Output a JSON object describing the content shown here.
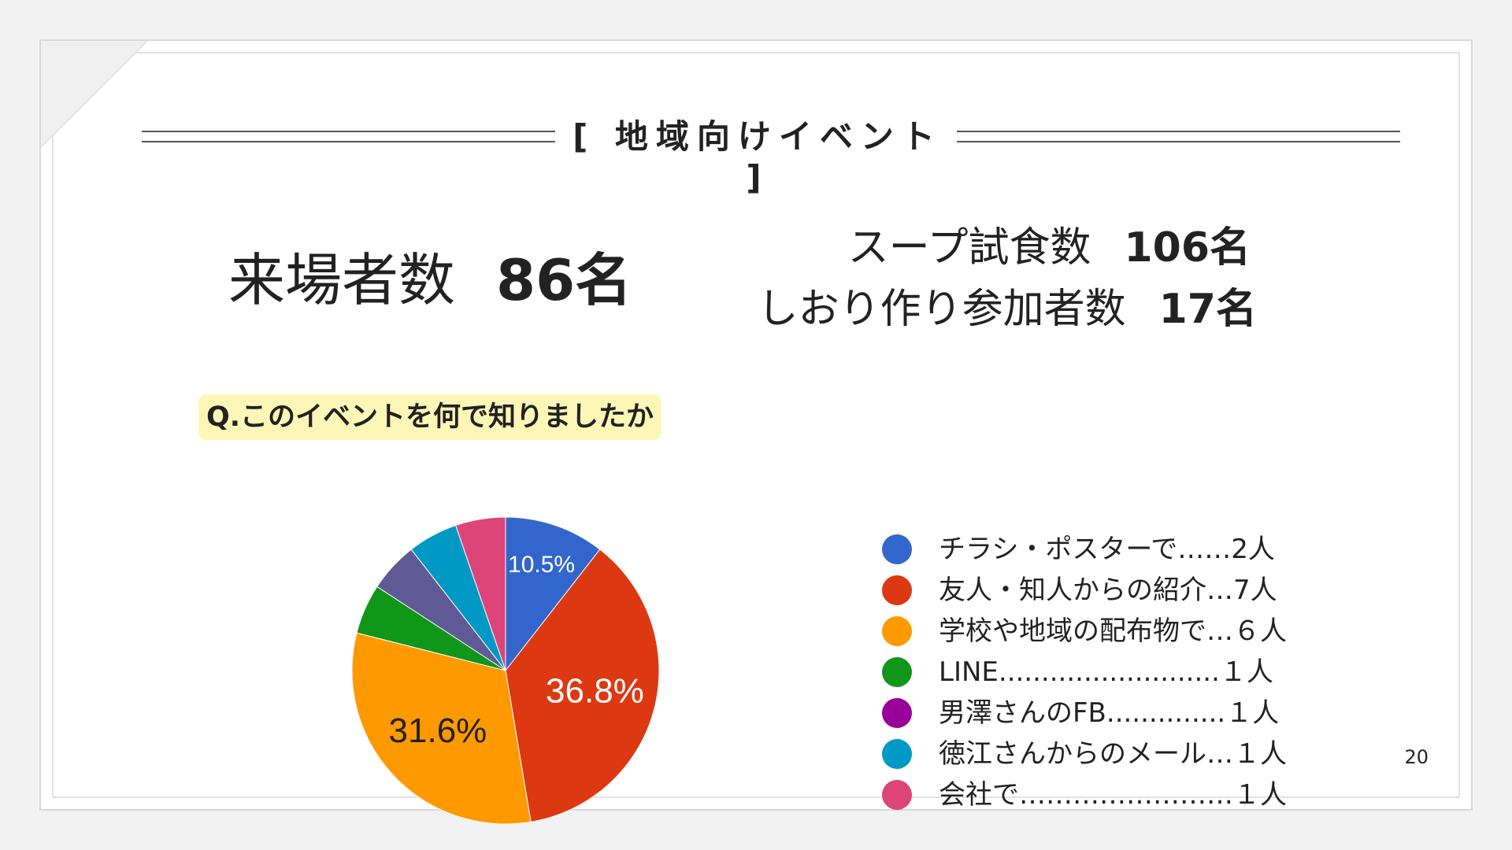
{
  "slide": {
    "title": "[ 地域向けイベント ]",
    "visitors": {
      "label": "来場者数",
      "value": "86名"
    },
    "soup": {
      "label": "スープ試食数",
      "value": "106名"
    },
    "bookmark": {
      "label": "しおり作り参加者数",
      "value": "17名"
    },
    "question": "Q.このイベントを何で知りましたか",
    "page_number": "20"
  },
  "chart_data": {
    "type": "pie",
    "slices": [
      {
        "category": "チラシ・ポスターで",
        "count": 2,
        "percent": 10.5,
        "label": "10.5%",
        "color": "#3366cc",
        "label_color": "#ffffff"
      },
      {
        "category": "友人・知人からの紹介",
        "count": 7,
        "percent": 36.8,
        "label": "36.8%",
        "color": "#dc3912",
        "label_color": "#ffffff"
      },
      {
        "category": "学校や地域の配布物で",
        "count": 6,
        "percent": 31.6,
        "label": "31.6%",
        "color": "#ff9900",
        "label_color": "#222222"
      },
      {
        "category": "LINE",
        "count": 1,
        "percent": 5.3,
        "label": "",
        "color": "#109618",
        "label_color": "#ffffff"
      },
      {
        "category": "男澤さんのFB",
        "count": 1,
        "percent": 5.3,
        "label": "",
        "color": "#5f5a96",
        "label_color": "#ffffff"
      },
      {
        "category": "徳江さんからのメール",
        "count": 1,
        "percent": 5.3,
        "label": "",
        "color": "#0099c6",
        "label_color": "#ffffff"
      },
      {
        "category": "会社で",
        "count": 1,
        "percent": 5.3,
        "label": "",
        "color": "#dd4477",
        "label_color": "#ffffff"
      }
    ],
    "legend": [
      {
        "text": "チラシ・ポスターで……2人",
        "color": "#3366cc"
      },
      {
        "text": "友人・知人からの紹介…7人",
        "color": "#dc3912"
      },
      {
        "text": "学校や地域の配布物で…６人",
        "color": "#ff9900"
      },
      {
        "text": "LINE..........................１人",
        "color": "#109618"
      },
      {
        "text": "男澤さんのFB..............１人",
        "color": "#990099"
      },
      {
        "text": "徳江さんからのメール…１人",
        "color": "#0099c6"
      },
      {
        "text": "会社で……………………１人",
        "color": "#dd4477"
      }
    ]
  }
}
